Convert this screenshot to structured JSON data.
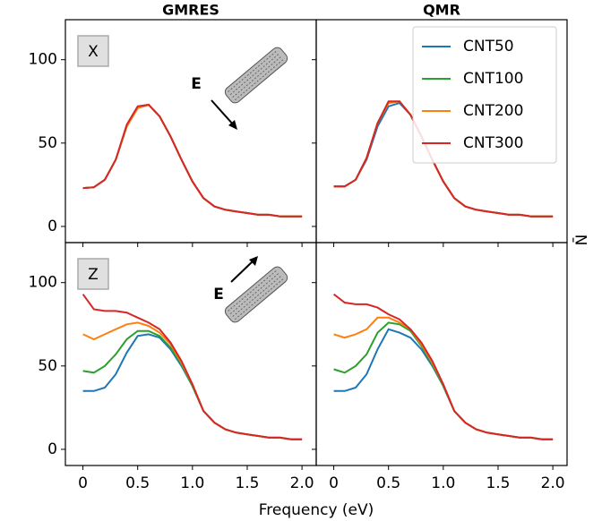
{
  "xlabel": "Frequency (eV)",
  "ylabel": "N̄",
  "chart_data": [
    {
      "type": "line",
      "title": "GMRES",
      "panel_label": "X",
      "annotation": "E",
      "x": [
        0,
        0.1,
        0.2,
        0.3,
        0.4,
        0.5,
        0.6,
        0.7,
        0.8,
        0.9,
        1.0,
        1.1,
        1.2,
        1.3,
        1.4,
        1.5,
        1.6,
        1.7,
        1.8,
        1.9,
        2.0
      ],
      "xlim": [
        -0.16,
        2.13
      ],
      "ylim": [
        -9.7,
        124
      ],
      "yticks": [
        0,
        50,
        100
      ],
      "series": [
        {
          "name": "CNT50",
          "color": "#1f77b4",
          "values": [
            23,
            23.5,
            28,
            40,
            60,
            71,
            73,
            66,
            54,
            40,
            27,
            17,
            12,
            10,
            9,
            8,
            7,
            7,
            6,
            6,
            6
          ]
        },
        {
          "name": "CNT100",
          "color": "#2ca02c",
          "values": [
            23,
            23.5,
            28,
            40,
            60,
            71,
            73,
            66,
            54,
            40,
            27,
            17,
            12,
            10,
            9,
            8,
            7,
            7,
            6,
            6,
            6
          ]
        },
        {
          "name": "CNT200",
          "color": "#ff7f0e",
          "values": [
            23,
            23.5,
            28,
            40,
            60,
            71,
            73,
            66,
            54,
            40,
            27,
            17,
            12,
            10,
            9,
            8,
            7,
            7,
            6,
            6,
            6
          ]
        },
        {
          "name": "CNT300",
          "color": "#d62728",
          "values": [
            23,
            23.5,
            28,
            40,
            61,
            72,
            73,
            66,
            54,
            40,
            27,
            17,
            12,
            10,
            9,
            8,
            7,
            7,
            6,
            6,
            6
          ]
        }
      ]
    },
    {
      "type": "line",
      "title": "QMR",
      "legend": "upper right",
      "x": [
        0,
        0.1,
        0.2,
        0.3,
        0.4,
        0.5,
        0.6,
        0.7,
        0.8,
        0.9,
        1.0,
        1.1,
        1.2,
        1.3,
        1.4,
        1.5,
        1.6,
        1.7,
        1.8,
        1.9,
        2.0
      ],
      "xlim": [
        -0.16,
        2.13
      ],
      "ylim": [
        -9.7,
        124
      ],
      "series": [
        {
          "name": "CNT50",
          "color": "#1f77b4",
          "values": [
            24,
            24,
            28,
            40,
            60,
            72,
            74,
            67,
            54,
            40,
            27,
            17,
            12,
            10,
            9,
            8,
            7,
            7,
            6,
            6,
            6
          ]
        },
        {
          "name": "CNT100",
          "color": "#2ca02c",
          "values": [
            24,
            24,
            28,
            41,
            62,
            74,
            75,
            67,
            54,
            40,
            27,
            17,
            12,
            10,
            9,
            8,
            7,
            7,
            6,
            6,
            6
          ]
        },
        {
          "name": "CNT200",
          "color": "#ff7f0e",
          "values": [
            24,
            24,
            28,
            41,
            62,
            74,
            75,
            67,
            54,
            40,
            27,
            17,
            12,
            10,
            9,
            8,
            7,
            7,
            6,
            6,
            6
          ]
        },
        {
          "name": "CNT300",
          "color": "#d62728",
          "values": [
            24,
            24,
            28,
            41,
            62,
            75,
            75,
            67,
            54,
            40,
            27,
            17,
            12,
            10,
            9,
            8,
            7,
            7,
            6,
            6,
            6
          ]
        }
      ]
    },
    {
      "type": "line",
      "panel_label": "Z",
      "annotation": "E",
      "x": [
        0,
        0.1,
        0.2,
        0.3,
        0.4,
        0.5,
        0.6,
        0.7,
        0.8,
        0.9,
        1.0,
        1.1,
        1.2,
        1.3,
        1.4,
        1.5,
        1.6,
        1.7,
        1.8,
        1.9,
        2.0
      ],
      "xlim": [
        -0.16,
        2.13
      ],
      "ylim": [
        -9.7,
        124
      ],
      "yticks": [
        0,
        50,
        100
      ],
      "xticks": [
        0,
        0.5,
        {
          "value": 1,
          "label": "1.0"
        },
        1.5,
        {
          "value": 2,
          "label": "2.0"
        }
      ],
      "series": [
        {
          "name": "CNT50",
          "color": "#1f77b4",
          "values": [
            35,
            35,
            37,
            45,
            58,
            68,
            69,
            67,
            60,
            50,
            38,
            23,
            16,
            12,
            10,
            9,
            8,
            7,
            7,
            6,
            6
          ]
        },
        {
          "name": "CNT100",
          "color": "#2ca02c",
          "values": [
            47,
            46,
            50,
            57,
            66,
            71,
            71,
            68,
            61,
            51,
            38,
            23,
            16,
            12,
            10,
            9,
            8,
            7,
            7,
            6,
            6
          ]
        },
        {
          "name": "CNT200",
          "color": "#ff7f0e",
          "values": [
            69,
            66,
            69,
            72,
            75,
            76,
            74,
            70,
            63,
            52,
            39,
            23,
            16,
            12,
            10,
            9,
            8,
            7,
            7,
            6,
            6
          ]
        },
        {
          "name": "CNT300",
          "color": "#d62728",
          "values": [
            93,
            84,
            83,
            83,
            82,
            79,
            76,
            72,
            64,
            53,
            39,
            23,
            16,
            12,
            10,
            9,
            8,
            7,
            7,
            6,
            6
          ]
        }
      ]
    },
    {
      "type": "line",
      "x": [
        0,
        0.1,
        0.2,
        0.3,
        0.4,
        0.5,
        0.6,
        0.7,
        0.8,
        0.9,
        1.0,
        1.1,
        1.2,
        1.3,
        1.4,
        1.5,
        1.6,
        1.7,
        1.8,
        1.9,
        2.0
      ],
      "xlim": [
        -0.16,
        2.13
      ],
      "ylim": [
        -9.7,
        124
      ],
      "xticks": [
        0,
        0.5,
        {
          "value": 1,
          "label": "1.0"
        },
        1.5,
        {
          "value": 2,
          "label": "2.0"
        }
      ],
      "series": [
        {
          "name": "CNT50",
          "color": "#1f77b4",
          "values": [
            35,
            35,
            37,
            45,
            60,
            72,
            70,
            67,
            60,
            50,
            38,
            23,
            16,
            12,
            10,
            9,
            8,
            7,
            7,
            6,
            6
          ]
        },
        {
          "name": "CNT100",
          "color": "#2ca02c",
          "values": [
            48,
            46,
            50,
            57,
            70,
            76,
            75,
            71,
            62,
            51,
            38,
            23,
            16,
            12,
            10,
            9,
            8,
            7,
            7,
            6,
            6
          ]
        },
        {
          "name": "CNT200",
          "color": "#ff7f0e",
          "values": [
            69,
            67,
            69,
            72,
            79,
            79,
            76,
            72,
            63,
            52,
            39,
            23,
            16,
            12,
            10,
            9,
            8,
            7,
            7,
            6,
            6
          ]
        },
        {
          "name": "CNT300",
          "color": "#d62728",
          "values": [
            93,
            88,
            87,
            87,
            85,
            81,
            78,
            72,
            64,
            53,
            39,
            23,
            16,
            12,
            10,
            9,
            8,
            7,
            7,
            6,
            6
          ]
        }
      ]
    }
  ]
}
